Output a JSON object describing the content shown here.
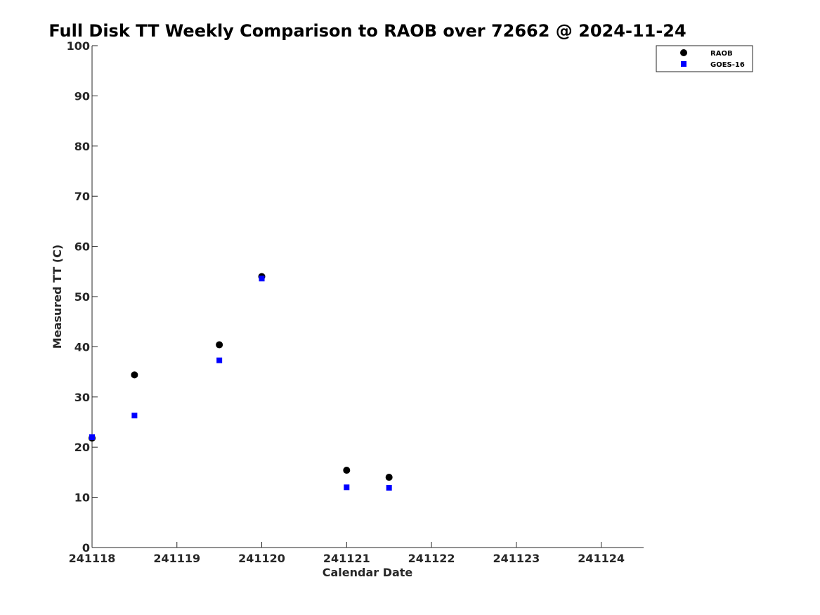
{
  "chart_data": {
    "type": "scatter",
    "title": "Full Disk TT Weekly Comparison to RAOB over 72662 @ 2024-11-24",
    "xlabel": "Calendar Date",
    "ylabel": "Measured TT (C)",
    "x_tick_labels": [
      "241118",
      "241119",
      "241120",
      "241121",
      "241122",
      "241123",
      "241124"
    ],
    "y_ticks": [
      0,
      10,
      20,
      30,
      40,
      50,
      60,
      70,
      80,
      90,
      100
    ],
    "xlim": [
      "2024-11-18",
      "2024-11-24 12:00"
    ],
    "ylim": [
      0,
      100
    ],
    "grid": false,
    "legend_position": "top-right",
    "series": [
      {
        "name": "RAOB",
        "marker": "circle",
        "color": "#000000",
        "points": [
          {
            "x": "2024-11-18 00:00",
            "y": 21.8
          },
          {
            "x": "2024-11-18 12:00",
            "y": 34.4
          },
          {
            "x": "2024-11-19 12:00",
            "y": 40.4
          },
          {
            "x": "2024-11-20 00:00",
            "y": 54.0
          },
          {
            "x": "2024-11-21 00:00",
            "y": 15.4
          },
          {
            "x": "2024-11-21 12:00",
            "y": 14.0
          }
        ]
      },
      {
        "name": "GOES-16",
        "marker": "square",
        "color": "#0000ff",
        "points": [
          {
            "x": "2024-11-18 00:00",
            "y": 22.0
          },
          {
            "x": "2024-11-18 12:00",
            "y": 26.3
          },
          {
            "x": "2024-11-19 12:00",
            "y": 37.3
          },
          {
            "x": "2024-11-20 00:00",
            "y": 53.6
          },
          {
            "x": "2024-11-21 00:00",
            "y": 12.0
          },
          {
            "x": "2024-11-21 12:00",
            "y": 11.9
          }
        ]
      }
    ]
  }
}
